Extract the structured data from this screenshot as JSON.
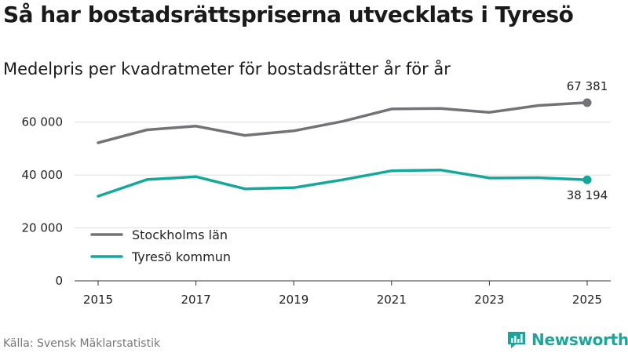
{
  "header": {
    "title": "Så har bostadsrättspriserna utvecklats i Tyresö",
    "subtitle": "Medelpris per kvadratmeter för bostadsrätter år för år"
  },
  "footer": {
    "source": "Källa: Svensk Mäklarstatistik",
    "brand": "Newsworthy"
  },
  "colors": {
    "stockholm": "#737277",
    "tyreso": "#14a89b",
    "grid": "#dddddd",
    "axis": "#333333"
  },
  "chart_data": {
    "type": "line",
    "title": "Så har bostadsrättspriserna utvecklats i Tyresö",
    "subtitle": "Medelpris per kvadratmeter för bostadsrätter år för år",
    "x": [
      2015,
      2016,
      2017,
      2018,
      2019,
      2020,
      2021,
      2022,
      2023,
      2024,
      2025
    ],
    "xticks": [
      2015,
      2017,
      2019,
      2021,
      2023,
      2025
    ],
    "xlim": [
      2014.5,
      2025.5
    ],
    "ylim": [
      0,
      70000
    ],
    "yticks": [
      0,
      20000,
      40000,
      60000
    ],
    "ytick_labels": [
      "0",
      "20 000",
      "40 000",
      "60 000"
    ],
    "grid": true,
    "legend_position": "lower-left",
    "series": [
      {
        "name": "Stockholms län",
        "color": "#737277",
        "values": [
          52200,
          57100,
          58500,
          55000,
          56700,
          60300,
          65000,
          65200,
          63700,
          66300,
          67381
        ],
        "end_label": "67 381"
      },
      {
        "name": "Tyresö kommun",
        "color": "#14a89b",
        "values": [
          32000,
          38300,
          39400,
          34800,
          35200,
          38200,
          41600,
          41900,
          38900,
          39000,
          38194
        ],
        "end_label": "38 194"
      }
    ]
  }
}
